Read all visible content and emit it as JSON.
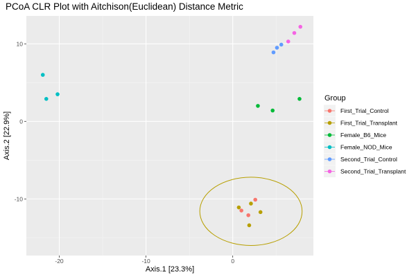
{
  "chart_data": {
    "type": "scatter",
    "title": "PCoA CLR Plot with Aitchison(Euclidean) Distance Metric",
    "xlabel": "Axis.1   [23.3%]",
    "ylabel": "Axis.2   [22.9%]",
    "xlim": [
      -23.8,
      9.3
    ],
    "ylim": [
      -17.3,
      13.6
    ],
    "x_ticks": [
      -20,
      -10,
      0
    ],
    "x_tick_labels": [
      "-20",
      "-10",
      "0"
    ],
    "y_ticks": [
      10,
      0,
      -10
    ],
    "y_tick_labels": [
      "10",
      "0",
      "-10"
    ],
    "grid": true,
    "legend": {
      "title": "Group",
      "position": "right"
    },
    "series": [
      {
        "name": "First_Trial_Control",
        "color": "#F8766D",
        "points": [
          [
            2.6,
            -10.1
          ],
          [
            1.0,
            -11.5
          ],
          [
            1.8,
            -12.1
          ]
        ]
      },
      {
        "name": "First_Trial_Transplant",
        "color": "#B79F00",
        "points": [
          [
            0.7,
            -11.1
          ],
          [
            2.1,
            -10.6
          ],
          [
            3.2,
            -11.7
          ],
          [
            1.9,
            -13.4
          ]
        ]
      },
      {
        "name": "Female_B6_Mice",
        "color": "#00BA38",
        "points": [
          [
            2.9,
            2.0
          ],
          [
            4.6,
            1.4
          ],
          [
            7.7,
            2.9
          ]
        ]
      },
      {
        "name": "Female_NOD_Mice",
        "color": "#00BFC4",
        "points": [
          [
            -21.9,
            6.0
          ],
          [
            -21.5,
            2.9
          ],
          [
            -20.2,
            3.5
          ]
        ]
      },
      {
        "name": "Second_Trial_Control",
        "color": "#619CFF",
        "points": [
          [
            4.7,
            8.9
          ],
          [
            5.1,
            9.5
          ],
          [
            5.6,
            9.9
          ]
        ]
      },
      {
        "name": "Second_Trial_Transplant",
        "color": "#F564E3",
        "points": [
          [
            6.4,
            10.3
          ],
          [
            7.1,
            11.4
          ],
          [
            7.8,
            12.2
          ]
        ]
      }
    ],
    "ellipse": {
      "group": "First_Trial_Transplant",
      "color": "#B79F00",
      "center": [
        2.1,
        -11.6
      ],
      "x_radius": 5.9,
      "y_radius": 4.4,
      "rotation_deg": 0
    }
  }
}
